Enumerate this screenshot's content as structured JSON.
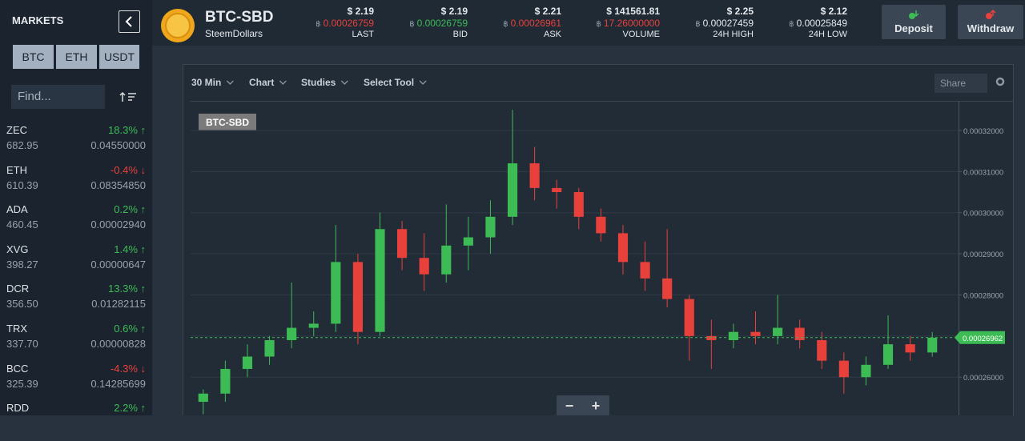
{
  "sidebar": {
    "title": "MARKETS",
    "tabs": [
      "BTC",
      "ETH",
      "USDT"
    ],
    "search_placeholder": "Find...",
    "markets": [
      {
        "symbol": "ZEC",
        "price": "682.95",
        "change": "18.3% ↑",
        "direction": "up",
        "btc_price": "0.04550000"
      },
      {
        "symbol": "ETH",
        "price": "610.39",
        "change": "-0.4% ↓",
        "direction": "down",
        "btc_price": "0.08354850"
      },
      {
        "symbol": "ADA",
        "price": "460.45",
        "change": "0.2% ↑",
        "direction": "up",
        "btc_price": "0.00002940"
      },
      {
        "symbol": "XVG",
        "price": "398.27",
        "change": "1.4% ↑",
        "direction": "up",
        "btc_price": "0.00000647"
      },
      {
        "symbol": "DCR",
        "price": "356.50",
        "change": "13.3% ↑",
        "direction": "up",
        "btc_price": "0.01282115"
      },
      {
        "symbol": "TRX",
        "price": "337.70",
        "change": "0.6% ↑",
        "direction": "up",
        "btc_price": "0.00000828"
      },
      {
        "symbol": "BCC",
        "price": "325.39",
        "change": "-4.3% ↓",
        "direction": "down",
        "btc_price": "0.14285699"
      },
      {
        "symbol": "RDD",
        "price": "",
        "change": "2.2% ↑",
        "direction": "up",
        "btc_price": ""
      }
    ]
  },
  "header": {
    "pair": "BTC-SBD",
    "name": "SteemDollars",
    "currency_symbol": "฿",
    "stats": [
      {
        "usd": "$ 2.19",
        "btc": "0.00026759",
        "label": "LAST",
        "trend": "down"
      },
      {
        "usd": "$ 2.19",
        "btc": "0.00026759",
        "label": "BID",
        "trend": "up"
      },
      {
        "usd": "$ 2.21",
        "btc": "0.00026961",
        "label": "ASK",
        "trend": "down"
      },
      {
        "usd": "$ 141561.81",
        "btc": "17.26000000",
        "label": "VOLUME",
        "trend": "down"
      },
      {
        "usd": "$ 2.25",
        "btc": "0.00027459",
        "label": "24H HIGH",
        "trend": "flat"
      },
      {
        "usd": "$ 2.12",
        "btc": "0.00025849",
        "label": "24H LOW",
        "trend": "flat"
      }
    ],
    "buttons": [
      "Deposit",
      "Withdraw"
    ]
  },
  "chart_data": {
    "type": "candlestick",
    "toolbar": [
      "30 Min",
      "Chart",
      "Studies",
      "Select Tool"
    ],
    "share": "Share",
    "symbol_tag": "BTC-SBD",
    "zoom": [
      "−",
      "+"
    ],
    "grid": true,
    "up_color": "#3dbb54",
    "down_color": "#e8413c",
    "ylim": [
      0.0002507,
      0.000327
    ],
    "yticks": [
      {
        "value": 0.00026,
        "label": "0.00026000"
      },
      {
        "value": 0.00027,
        "label": ""
      },
      {
        "value": 0.00028,
        "label": "0.00028000"
      },
      {
        "value": 0.00029,
        "label": "0.00029000"
      },
      {
        "value": 0.0003,
        "label": "0.00030000"
      },
      {
        "value": 0.00031,
        "label": "0.00031000"
      },
      {
        "value": 0.00032,
        "label": "0.00032000"
      }
    ],
    "last_price": {
      "value": 0.00026962,
      "label": "0.00026962"
    },
    "candles": [
      {
        "open": 0.000254,
        "high": 0.000257,
        "low": 0.000251,
        "close": 0.000256
      },
      {
        "open": 0.000256,
        "high": 0.000264,
        "low": 0.000254,
        "close": 0.000262
      },
      {
        "open": 0.000262,
        "high": 0.000268,
        "low": 0.00026,
        "close": 0.000265
      },
      {
        "open": 0.000265,
        "high": 0.00027,
        "low": 0.000263,
        "close": 0.000269
      },
      {
        "open": 0.000269,
        "high": 0.000283,
        "low": 0.000267,
        "close": 0.000272
      },
      {
        "open": 0.000272,
        "high": 0.000276,
        "low": 0.00027,
        "close": 0.000273
      },
      {
        "open": 0.000273,
        "high": 0.000297,
        "low": 0.000271,
        "close": 0.000288
      },
      {
        "open": 0.000288,
        "high": 0.00029,
        "low": 0.000268,
        "close": 0.000271
      },
      {
        "open": 0.000271,
        "high": 0.0003,
        "low": 0.00027,
        "close": 0.000296
      },
      {
        "open": 0.000296,
        "high": 0.000298,
        "low": 0.000286,
        "close": 0.000289
      },
      {
        "open": 0.000289,
        "high": 0.000295,
        "low": 0.000281,
        "close": 0.000285
      },
      {
        "open": 0.000285,
        "high": 0.000302,
        "low": 0.000283,
        "close": 0.000292
      },
      {
        "open": 0.000292,
        "high": 0.000299,
        "low": 0.000286,
        "close": 0.000294
      },
      {
        "open": 0.000294,
        "high": 0.000303,
        "low": 0.00029,
        "close": 0.000299
      },
      {
        "open": 0.000299,
        "high": 0.000325,
        "low": 0.000297,
        "close": 0.000312
      },
      {
        "open": 0.000312,
        "high": 0.000316,
        "low": 0.000303,
        "close": 0.000306
      },
      {
        "open": 0.000306,
        "high": 0.000308,
        "low": 0.000301,
        "close": 0.000305
      },
      {
        "open": 0.000305,
        "high": 0.000306,
        "low": 0.000296,
        "close": 0.000299
      },
      {
        "open": 0.000299,
        "high": 0.000301,
        "low": 0.000293,
        "close": 0.000295
      },
      {
        "open": 0.000295,
        "high": 0.000297,
        "low": 0.000285,
        "close": 0.000288
      },
      {
        "open": 0.000288,
        "high": 0.000293,
        "low": 0.000281,
        "close": 0.000284
      },
      {
        "open": 0.000284,
        "high": 0.000296,
        "low": 0.000277,
        "close": 0.000279
      },
      {
        "open": 0.000279,
        "high": 0.00028,
        "low": 0.000264,
        "close": 0.00027
      },
      {
        "open": 0.00027,
        "high": 0.000274,
        "low": 0.000262,
        "close": 0.000269
      },
      {
        "open": 0.000269,
        "high": 0.000273,
        "low": 0.000267,
        "close": 0.000271
      },
      {
        "open": 0.000271,
        "high": 0.000276,
        "low": 0.000268,
        "close": 0.00027
      },
      {
        "open": 0.00027,
        "high": 0.00028,
        "low": 0.000268,
        "close": 0.000272
      },
      {
        "open": 0.000272,
        "high": 0.000274,
        "low": 0.000267,
        "close": 0.000269
      },
      {
        "open": 0.000269,
        "high": 0.000271,
        "low": 0.000262,
        "close": 0.000264
      },
      {
        "open": 0.000264,
        "high": 0.000266,
        "low": 0.000256,
        "close": 0.00026
      },
      {
        "open": 0.00026,
        "high": 0.000265,
        "low": 0.000258,
        "close": 0.000263
      },
      {
        "open": 0.000263,
        "high": 0.000275,
        "low": 0.000262,
        "close": 0.000268
      },
      {
        "open": 0.000268,
        "high": 0.00027,
        "low": 0.000264,
        "close": 0.000266
      },
      {
        "open": 0.000266,
        "high": 0.000271,
        "low": 0.000265,
        "close": 0.0002696
      }
    ]
  }
}
